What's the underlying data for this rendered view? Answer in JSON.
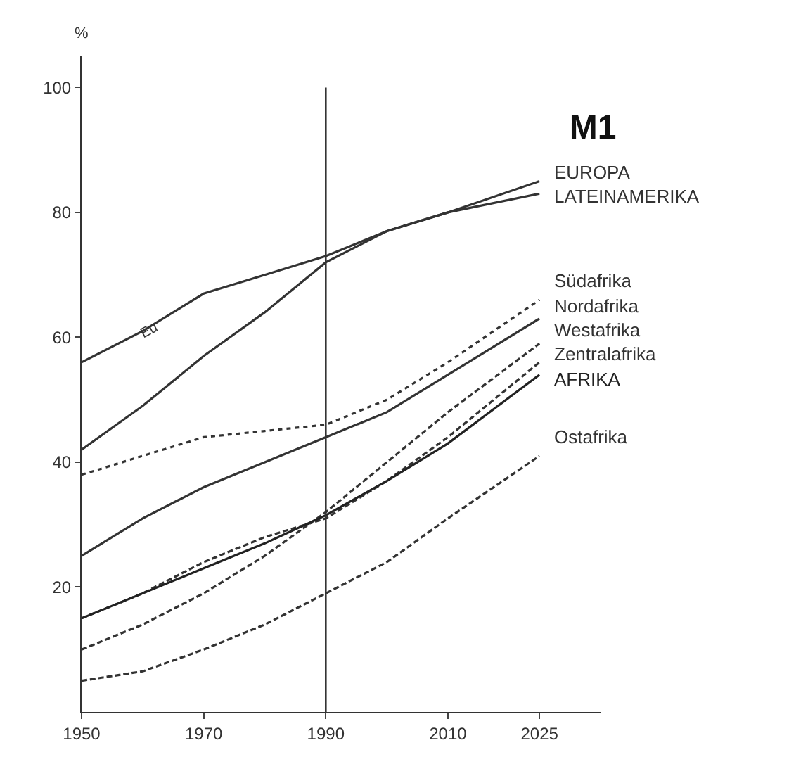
{
  "chart_data": {
    "type": "line",
    "title": "M1",
    "ylabel": "%",
    "x": [
      1950,
      1960,
      1970,
      1980,
      1990,
      2000,
      2010,
      2025
    ],
    "series": [
      {
        "name": "EUROPA",
        "color": "#333333",
        "line_style": "solid",
        "values": [
          56,
          61,
          67,
          70,
          73,
          77,
          80,
          85
        ]
      },
      {
        "name": "LATEINAMERIKA",
        "color": "#333333",
        "line_style": "solid",
        "values": [
          42,
          49,
          57,
          64,
          72,
          77,
          80,
          83
        ]
      },
      {
        "name": "Südafrika",
        "color": "#333333",
        "line_style": "dotted",
        "values": [
          38,
          41,
          44,
          45,
          46,
          50,
          56,
          66
        ]
      },
      {
        "name": "Nordafrika",
        "color": "#333333",
        "line_style": "solid",
        "values": [
          25,
          31,
          36,
          40,
          44,
          48,
          54,
          63
        ]
      },
      {
        "name": "Westafrika",
        "color": "#333333",
        "line_style": "dashed",
        "values": [
          10,
          14,
          19,
          25,
          32,
          40,
          48,
          59
        ]
      },
      {
        "name": "Zentralafrika",
        "color": "#333333",
        "line_style": "dashed",
        "values": [
          15,
          19,
          24,
          28,
          31,
          37,
          44,
          56
        ]
      },
      {
        "name": "AFRIKA",
        "color": "#222222",
        "line_style": "solid",
        "values": [
          15,
          19,
          23,
          27,
          31.5,
          37,
          43,
          54
        ]
      },
      {
        "name": "Ostafrika",
        "color": "#333333",
        "line_style": "dashed",
        "values": [
          5,
          6.5,
          10,
          14,
          19,
          24,
          31,
          41
        ]
      }
    ],
    "xlim": [
      1950,
      2035
    ],
    "xticks": [
      1950,
      1970,
      1990,
      2010,
      2025
    ],
    "ylim": [
      0,
      105
    ],
    "yticks": [
      20,
      40,
      60,
      80,
      100
    ],
    "grid": false,
    "legend": false,
    "marker": "none",
    "ref_lines": [
      {
        "axis": "x",
        "value": 1990,
        "color": "#333333"
      }
    ],
    "annotations": [
      {
        "text": "Eu",
        "x": 1961,
        "y": 61
      }
    ]
  }
}
